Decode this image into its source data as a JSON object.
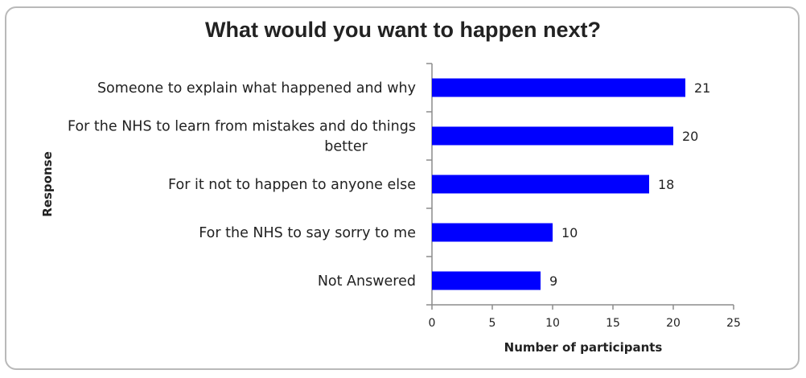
{
  "chart_data": {
    "type": "bar",
    "orientation": "horizontal",
    "title": "What would you want to happen next?",
    "xlabel": "Number of participants",
    "ylabel": "Response",
    "categories": [
      [
        "Someone to explain what happened and why"
      ],
      [
        "For the NHS to learn from mistakes and do things",
        "better"
      ],
      [
        "For it not to happen to anyone else"
      ],
      [
        "For the NHS to say sorry to me"
      ],
      [
        "Not Answered"
      ]
    ],
    "values": [
      21,
      20,
      18,
      10,
      9
    ],
    "xlim": [
      0,
      25
    ],
    "xticks": [
      "0",
      "5",
      "10",
      "15",
      "20",
      "25"
    ],
    "bar_color": "#0000ff",
    "grid": false,
    "legend": "none",
    "data_labels": true
  }
}
